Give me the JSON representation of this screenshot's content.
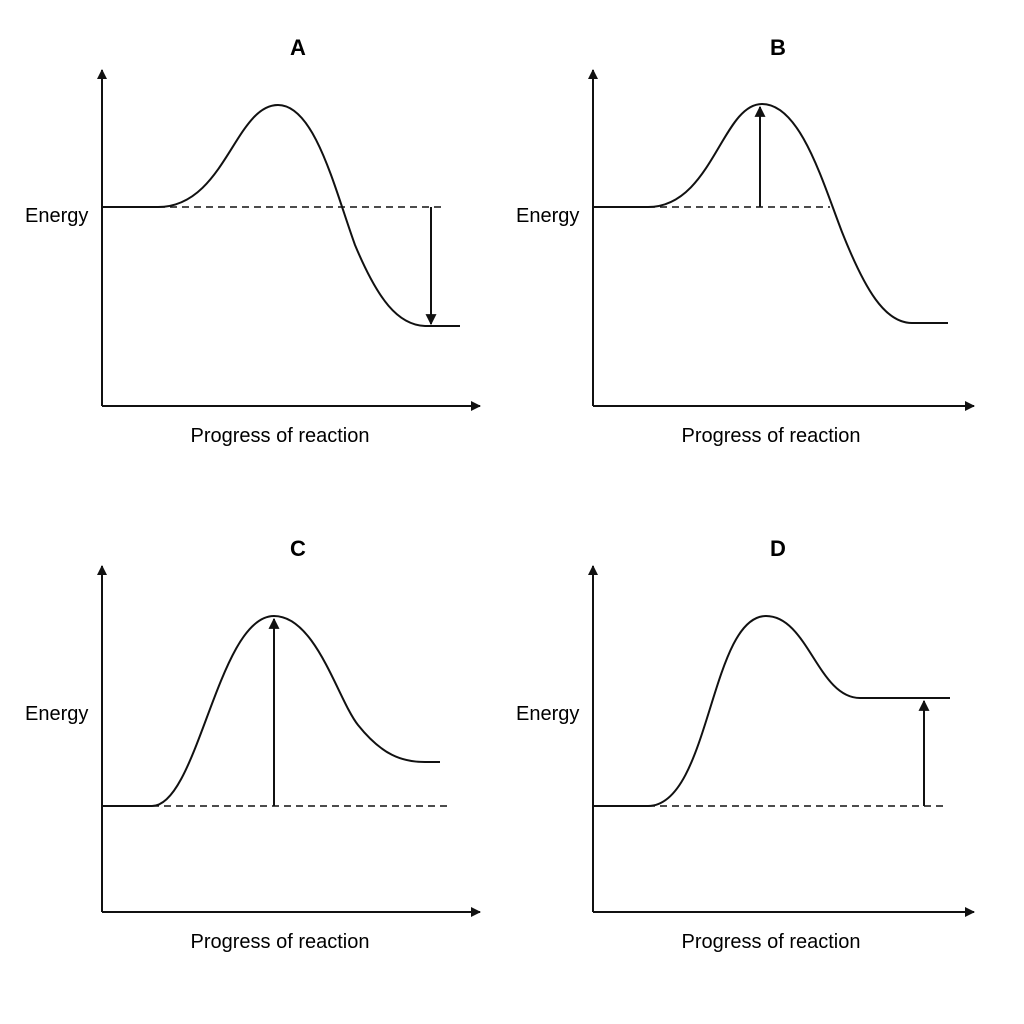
{
  "panels": [
    {
      "title": "A",
      "y_axis_label": "Energy",
      "x_axis_label": "Progress of reaction"
    },
    {
      "title": "B",
      "y_axis_label": "Energy",
      "x_axis_label": "Progress of reaction"
    },
    {
      "title": "C",
      "y_axis_label": "Energy",
      "x_axis_label": "Progress of reaction"
    },
    {
      "title": "D",
      "y_axis_label": "Energy",
      "x_axis_label": "Progress of reaction"
    }
  ]
}
